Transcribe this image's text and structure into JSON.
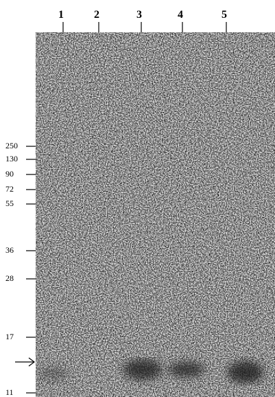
{
  "lanes": [
    1,
    2,
    3,
    4,
    5
  ],
  "markers": [
    250,
    130,
    90,
    72,
    55,
    36,
    28,
    17,
    11
  ]
}
